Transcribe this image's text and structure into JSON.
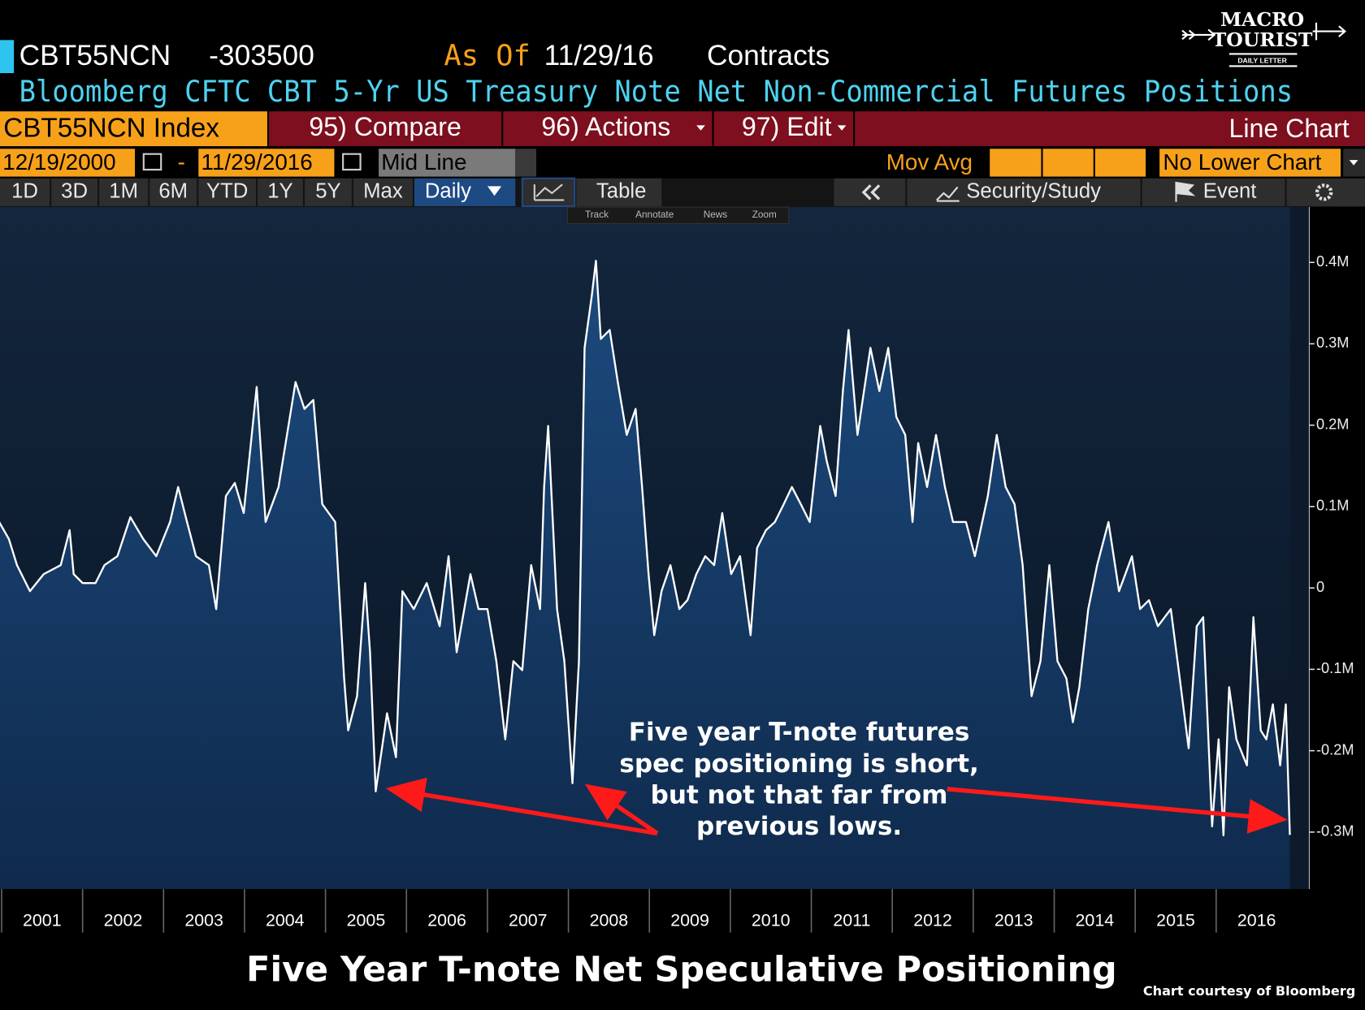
{
  "header": {
    "ticker": "CBT55NCN",
    "last": "-303500",
    "as_of_label": "As Of",
    "as_of_date": "11/29/16",
    "units": "Contracts",
    "description": "Bloomberg CFTC CBT 5-Yr US Treasury Note Net Non-Commercial Futures Positions"
  },
  "menu": {
    "security": "CBT55NCN Index",
    "compare": "95) Compare",
    "actions": "96) Actions",
    "edit": "97) Edit",
    "chart_type": "Line Chart"
  },
  "range": {
    "start": "12/19/2000",
    "dash": "-",
    "end": "11/29/2016",
    "mode": "Mid Line",
    "mov_avg": "Mov Avg",
    "lower": "No Lower Chart"
  },
  "toolbar": {
    "periods": [
      "1D",
      "3D",
      "1M",
      "6M",
      "YTD",
      "1Y",
      "5Y",
      "Max"
    ],
    "frequency": "Daily",
    "table": "Table",
    "security_study": "Security/Study",
    "event": "Event",
    "tools": [
      "Track",
      "Annotate",
      "News",
      "Zoom"
    ]
  },
  "logo": {
    "line1": "MACRO",
    "line2": "TOURIST",
    "tagline": "DAILY LETTER"
  },
  "credit": "Chart courtesy of Bloomberg",
  "chart_data": {
    "type": "line",
    "title": "Five Year T-note Net Speculative Positioning",
    "annotation_lines": [
      "Five year T-note futures",
      "spec positioning is short,",
      "but not that far from",
      "previous lows."
    ],
    "color": "#ffffff",
    "x": [
      2000.97,
      2001.09,
      2001.19,
      2001.35,
      2001.52,
      2001.73,
      2001.84,
      2001.89,
      2002.0,
      2002.16,
      2002.27,
      2002.43,
      2002.59,
      2002.75,
      2002.91,
      2003.08,
      2003.18,
      2003.29,
      2003.4,
      2003.56,
      2003.65,
      2003.77,
      2003.88,
      2003.99,
      2004.15,
      2004.26,
      2004.42,
      2004.63,
      2004.74,
      2004.85,
      2004.96,
      2005.12,
      2005.23,
      2005.28,
      2005.39,
      2005.49,
      2005.55,
      2005.62,
      2005.76,
      2005.87,
      2005.95,
      2006.09,
      2006.25,
      2006.41,
      2006.52,
      2006.62,
      2006.79,
      2006.89,
      2007.0,
      2007.11,
      2007.22,
      2007.32,
      2007.43,
      2007.54,
      2007.65,
      2007.7,
      2007.75,
      2007.86,
      2007.95,
      2008.05,
      2008.13,
      2008.2,
      2008.29,
      2008.34,
      2008.4,
      2008.51,
      2008.61,
      2008.72,
      2008.83,
      2008.91,
      2008.99,
      2009.06,
      2009.15,
      2009.26,
      2009.37,
      2009.47,
      2009.58,
      2009.69,
      2009.8,
      2009.9,
      2010.01,
      2010.12,
      2010.25,
      2010.33,
      2010.44,
      2010.55,
      2010.66,
      2010.76,
      2010.87,
      2010.98,
      2011.11,
      2011.19,
      2011.3,
      2011.39,
      2011.46,
      2011.57,
      2011.73,
      2011.84,
      2011.95,
      2012.05,
      2012.16,
      2012.25,
      2012.32,
      2012.43,
      2012.54,
      2012.65,
      2012.75,
      2012.91,
      2013.02,
      2013.18,
      2013.29,
      2013.4,
      2013.51,
      2013.61,
      2013.72,
      2013.83,
      2013.94,
      2014.04,
      2014.15,
      2014.23,
      2014.31,
      2014.42,
      2014.53,
      2014.67,
      2014.8,
      2014.96,
      2015.06,
      2015.17,
      2015.28,
      2015.44,
      2015.55,
      2015.66,
      2015.76,
      2015.84,
      2015.95,
      2016.03,
      2016.09,
      2016.16,
      2016.25,
      2016.38,
      2016.46,
      2016.55,
      2016.62,
      2016.7,
      2016.79,
      2016.86,
      2016.91
    ],
    "values": [
      81000,
      60000,
      28000,
      -4000,
      17000,
      28000,
      71000,
      17000,
      6000,
      6000,
      28000,
      39000,
      87000,
      60000,
      39000,
      81000,
      124000,
      81000,
      39000,
      28000,
      -26000,
      113000,
      129000,
      92000,
      247000,
      81000,
      124000,
      253000,
      220000,
      231000,
      103000,
      81000,
      -111000,
      -175000,
      -133000,
      6000,
      -79000,
      -250000,
      -154000,
      -208000,
      -4000,
      -26000,
      6000,
      -47000,
      39000,
      -79000,
      17000,
      -26000,
      -26000,
      -90000,
      -186000,
      -90000,
      -101000,
      28000,
      -26000,
      124000,
      199000,
      -26000,
      -90000,
      -240000,
      -90000,
      295000,
      360000,
      402000,
      306000,
      317000,
      253000,
      188000,
      220000,
      124000,
      17000,
      -58000,
      -4000,
      28000,
      -26000,
      -15000,
      17000,
      39000,
      28000,
      92000,
      17000,
      39000,
      -58000,
      49000,
      71000,
      81000,
      103000,
      124000,
      103000,
      81000,
      199000,
      156000,
      113000,
      242000,
      317000,
      188000,
      295000,
      242000,
      295000,
      210000,
      188000,
      81000,
      178000,
      124000,
      188000,
      124000,
      81000,
      81000,
      39000,
      113000,
      188000,
      124000,
      103000,
      28000,
      -133000,
      -90000,
      28000,
      -90000,
      -111000,
      -165000,
      -122000,
      -26000,
      28000,
      81000,
      -4000,
      39000,
      -26000,
      -15000,
      -47000,
      -26000,
      -111000,
      -197000,
      -47000,
      -36000,
      -293000,
      -186000,
      -304000,
      -122000,
      -186000,
      -218000,
      -36000,
      -175000,
      -186000,
      -143000,
      -218000,
      -143000,
      -303500
    ],
    "xlim": [
      2000.98,
      2017.15
    ],
    "xticks": [
      2001,
      2002,
      2003,
      2004,
      2005,
      2006,
      2007,
      2008,
      2009,
      2010,
      2011,
      2012,
      2013,
      2014,
      2015,
      2016
    ],
    "ylim": [
      -370000,
      468000
    ],
    "yticks": [
      {
        "value": 400000,
        "label": "0.4M"
      },
      {
        "value": 300000,
        "label": "0.3M"
      },
      {
        "value": 200000,
        "label": "0.2M"
      },
      {
        "value": 100000,
        "label": "0.1M"
      },
      0,
      {
        "value": -100000,
        "label": "-0.1M"
      },
      {
        "value": -200000,
        "label": "-0.2M"
      },
      {
        "value": -300000,
        "label": "-0.3M"
      }
    ]
  }
}
